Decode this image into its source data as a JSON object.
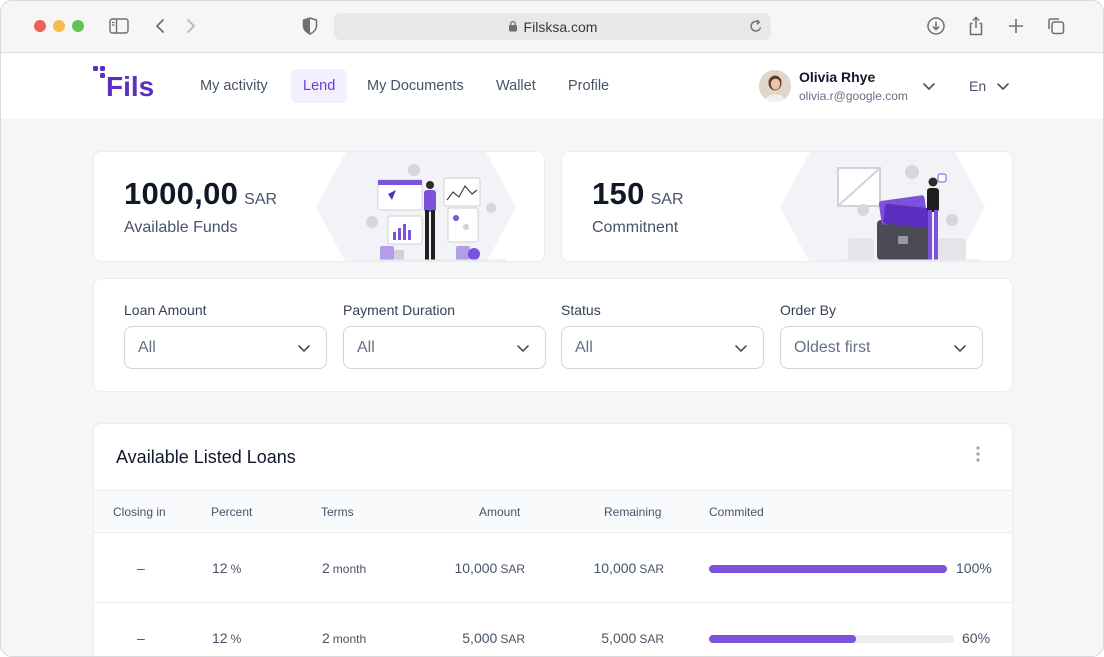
{
  "browser": {
    "url": "Filsksa.com"
  },
  "header": {
    "nav": [
      "My activity",
      "Lend",
      "My Documents",
      "Wallet",
      "Profile"
    ],
    "active_nav": "Lend",
    "user": {
      "name": "Olivia Rhye",
      "email": "olivia.r@google.com"
    },
    "language": "En"
  },
  "stats": [
    {
      "value": "1000,00",
      "unit": "SAR",
      "label": "Available Funds"
    },
    {
      "value": "150",
      "unit": "SAR",
      "label": "Commitnent"
    }
  ],
  "filters": [
    {
      "label": "Loan Amount",
      "value": "All"
    },
    {
      "label": "Payment Duration",
      "value": "All"
    },
    {
      "label": "Status",
      "value": "All"
    },
    {
      "label": "Order By",
      "value": "Oldest first"
    }
  ],
  "loans": {
    "title": "Available Listed Loans",
    "columns": [
      "Closing in",
      "Percent",
      "Terms",
      "Amount",
      "Remaining",
      "Commited"
    ],
    "rows": [
      {
        "closing": "–",
        "percent": "12",
        "percent_unit": "%",
        "terms": "2",
        "terms_unit": "month",
        "amount": "10,000",
        "amount_unit": "SAR",
        "remaining": "10,000",
        "remaining_unit": "SAR",
        "committed_label": "100%",
        "committed_fraction": 1.0
      },
      {
        "closing": "–",
        "percent": "12",
        "percent_unit": "%",
        "terms": "2",
        "terms_unit": "month",
        "amount": "5,000",
        "amount_unit": "SAR",
        "remaining": "5,000",
        "remaining_unit": "SAR",
        "committed_label": "60%",
        "committed_fraction": 0.6
      }
    ]
  },
  "colors": {
    "accent": "#7c52db",
    "accent_bg": "#f4efff",
    "brand": "#5b2fc0"
  },
  "icons": [
    "sidebar-icon",
    "back-icon",
    "forward-icon",
    "shield-icon",
    "lock-icon",
    "reload-icon",
    "download-icon",
    "share-icon",
    "new-tab-icon",
    "tabs-icon",
    "chevron-down-icon",
    "more-vertical-icon"
  ]
}
